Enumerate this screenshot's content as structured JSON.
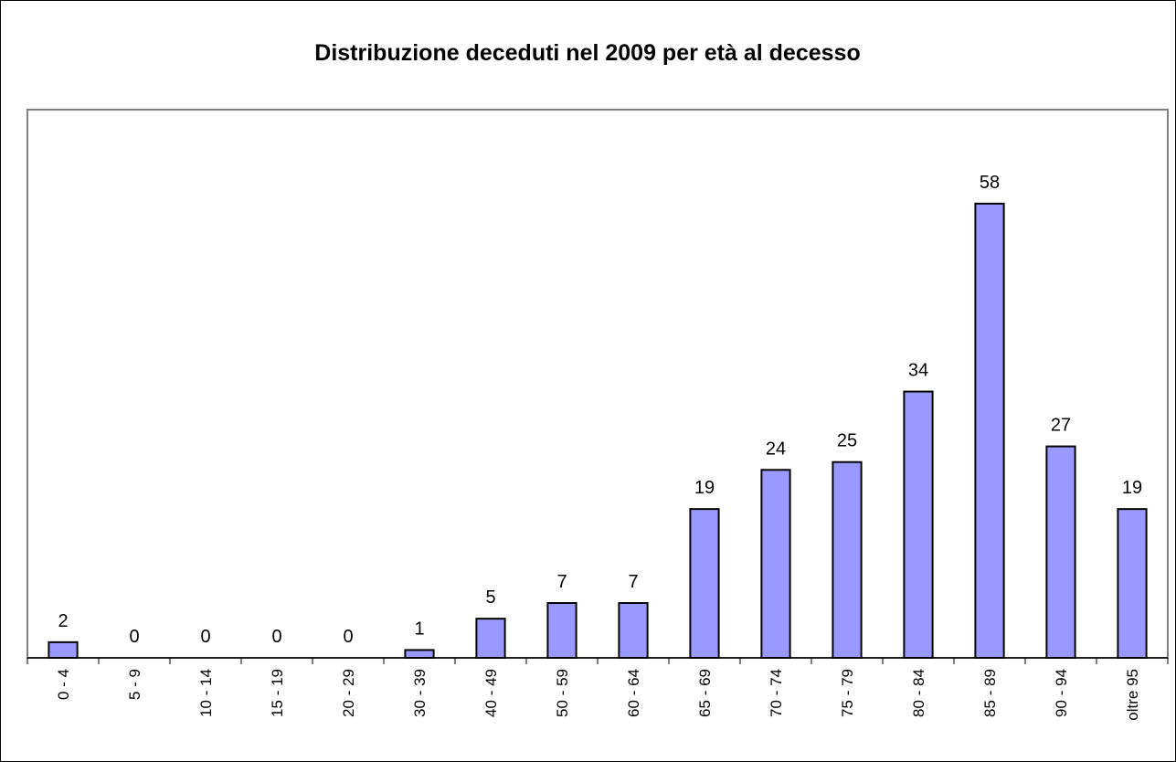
{
  "chart_data": {
    "type": "bar",
    "title": "Distribuzione deceduti nel 2009 per età al decesso",
    "categories": [
      "0 - 4",
      "5 - 9",
      "10 - 14",
      "15 - 19",
      "20 - 29",
      "30 - 39",
      "40 - 49",
      "50 - 59",
      "60 - 64",
      "65 - 69",
      "70 - 74",
      "75 - 79",
      "80 - 84",
      "85 - 89",
      "90 - 94",
      "oltre 95"
    ],
    "values": [
      2,
      0,
      0,
      0,
      0,
      1,
      5,
      7,
      7,
      19,
      24,
      25,
      34,
      58,
      27,
      19
    ],
    "color": "#9999ff",
    "ylim": [
      0,
      70
    ]
  }
}
